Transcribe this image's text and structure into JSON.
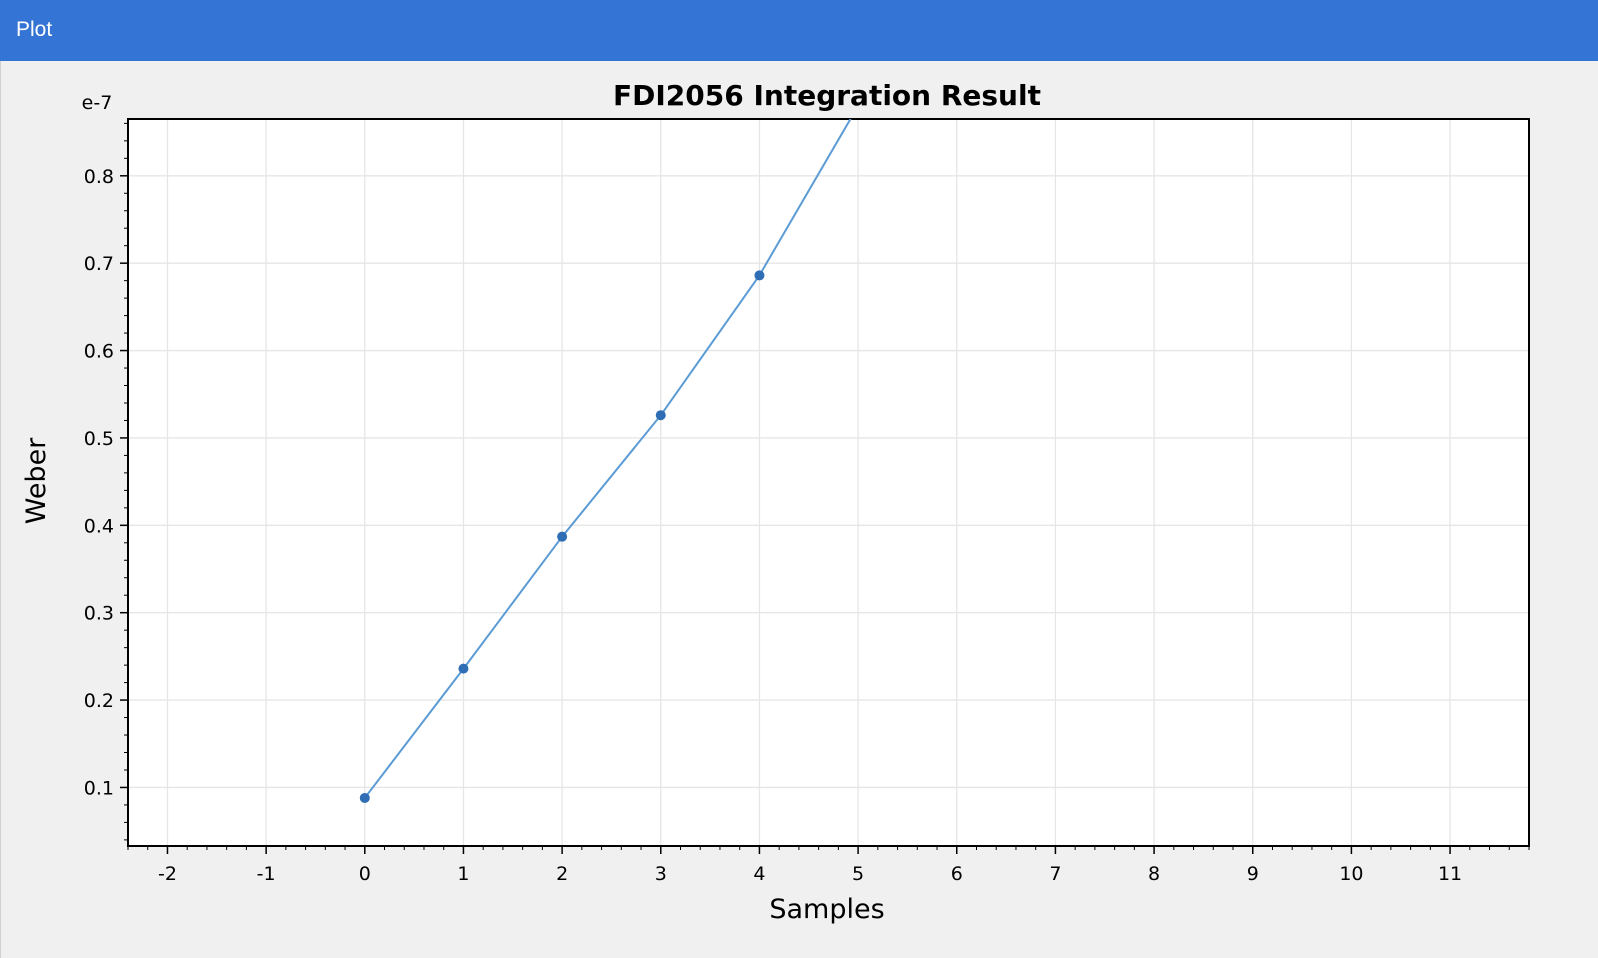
{
  "window": {
    "title": "Plot"
  },
  "chart_data": {
    "type": "line",
    "title": "FDI2056 Integration Result",
    "xlabel": "Samples",
    "ylabel": "Weber",
    "y_exponent_label": "e-7",
    "xlim": [
      -2.4,
      11.8
    ],
    "ylim": [
      0.033,
      0.865
    ],
    "x_ticks": [
      -2,
      -1,
      0,
      1,
      2,
      3,
      4,
      5,
      6,
      7,
      8,
      9,
      10,
      11
    ],
    "x_tick_labels": [
      "-2",
      "-1",
      "0",
      "1",
      "2",
      "3",
      "4",
      "5",
      "6",
      "7",
      "8",
      "9",
      "10",
      "11"
    ],
    "y_ticks": [
      0.1,
      0.2,
      0.3,
      0.4,
      0.5,
      0.6,
      0.7,
      0.8
    ],
    "y_tick_labels": [
      "0.1",
      "0.2",
      "0.3",
      "0.4",
      "0.5",
      "0.6",
      "0.7",
      "0.8"
    ],
    "grid": true,
    "series": [
      {
        "color": "#2f6db4",
        "line_color": "#5b9bd5",
        "x": [
          0,
          1,
          2,
          3,
          4,
          5
        ],
        "y": [
          0.088,
          0.236,
          0.387,
          0.526,
          0.686,
          0.88
        ],
        "markers_on": [
          0,
          1,
          2,
          3,
          4
        ]
      }
    ]
  }
}
